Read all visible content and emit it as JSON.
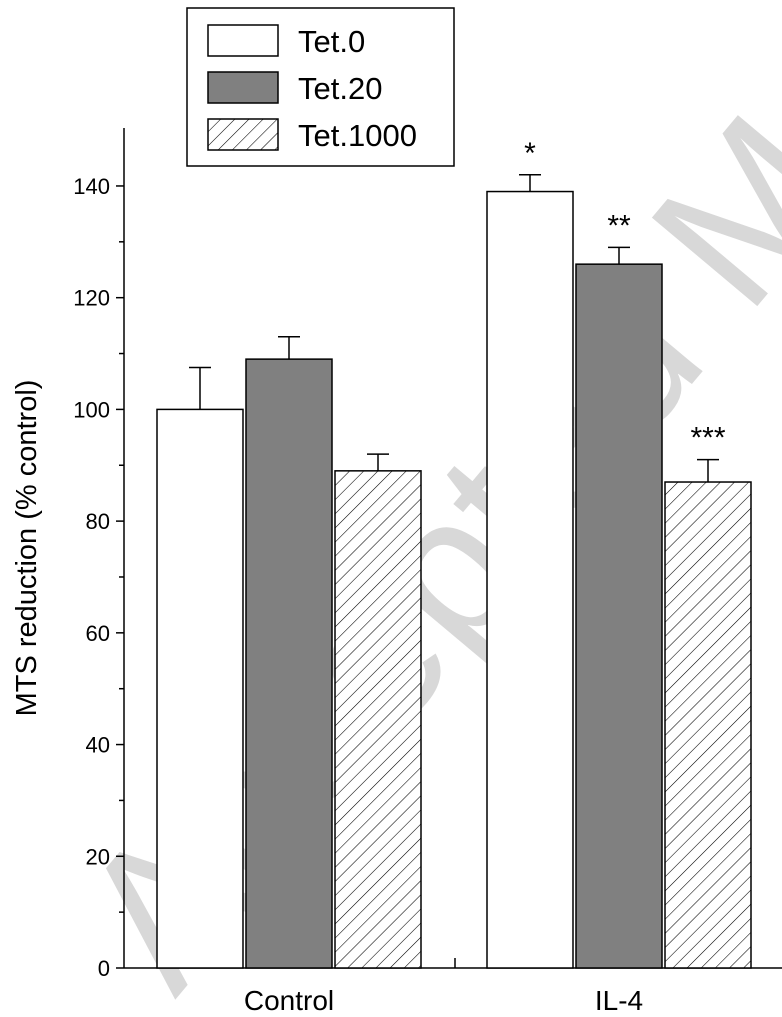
{
  "watermark": "Accepted Manuscript",
  "chart_data": {
    "type": "bar",
    "title": "",
    "xlabel": "",
    "ylabel": "MTS reduction (% control)",
    "ylim": [
      0,
      150
    ],
    "yticks": [
      0,
      20,
      40,
      60,
      80,
      100,
      120,
      140
    ],
    "categories": [
      "Control",
      "IL-4"
    ],
    "legend_position": "top-left",
    "series": [
      {
        "name": "Tet.0",
        "fill": "white",
        "color": "#ffffff",
        "values": [
          100,
          139
        ],
        "errors": [
          7.5,
          3
        ],
        "annotations": [
          "",
          "*"
        ]
      },
      {
        "name": "Tet.20",
        "fill": "solid",
        "color": "#808080",
        "values": [
          109,
          126
        ],
        "errors": [
          4,
          3
        ],
        "annotations": [
          "",
          "**"
        ]
      },
      {
        "name": "Tet.1000",
        "fill": "hatch",
        "color": "#ffffff",
        "values": [
          89,
          87
        ],
        "errors": [
          3,
          4
        ],
        "annotations": [
          "",
          "***"
        ]
      }
    ]
  }
}
